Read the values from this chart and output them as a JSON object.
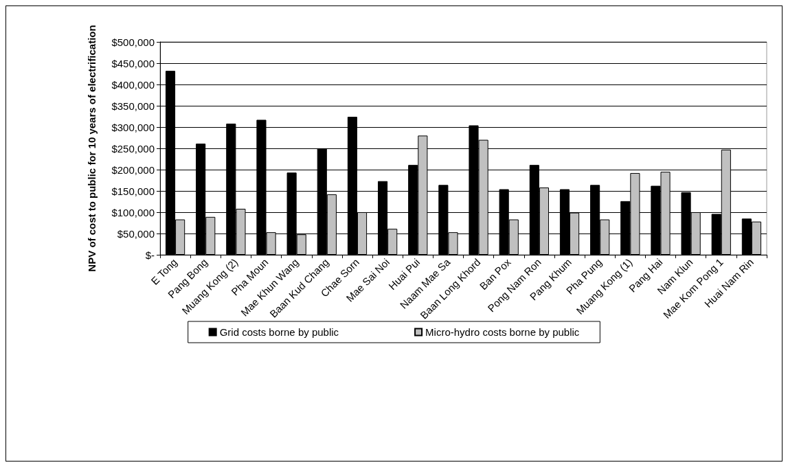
{
  "chart_data": {
    "type": "bar",
    "ylabel": "NPV of cost to public for 10 years of electrification",
    "categories": [
      "E Tong",
      "Pang Bong",
      "Muang Kong (2)",
      "Pha Moun",
      "Mae Khun Wang",
      "Baan Kud Chang",
      "Chae Sorn",
      "Mae Sai Noi",
      "Huai Pui",
      "Naam Mae Sa",
      "Baan Long Khord",
      "Ban Pox",
      "Pong Nam Ron",
      "Pang Khum",
      "Pha Pung",
      "Muang Kong (1)",
      "Pang Hai",
      "Nam Klun",
      "Mae Kom Pong 1",
      "Huai Nam Rin"
    ],
    "series": [
      {
        "name": "Grid costs borne by public",
        "color": "#000000",
        "values": [
          432000,
          261000,
          308000,
          317000,
          193000,
          250000,
          324000,
          173000,
          211000,
          164000,
          304000,
          154000,
          211000,
          154000,
          164000,
          126000,
          162000,
          147000,
          96000,
          85000
        ]
      },
      {
        "name": "Micro-hydro costs borne by public",
        "color": "#c0c0c0",
        "values": [
          83000,
          89000,
          108000,
          53000,
          48000,
          142000,
          100000,
          61000,
          280000,
          53000,
          270000,
          83000,
          158000,
          99000,
          83000,
          192000,
          195000,
          100000,
          247000,
          78000
        ]
      }
    ],
    "ylim": [
      0,
      500000
    ],
    "yticks": [
      {
        "value": 0,
        "label": "$-"
      },
      {
        "value": 50000,
        "label": "$50,000"
      },
      {
        "value": 100000,
        "label": "$100,000"
      },
      {
        "value": 150000,
        "label": "$150,000"
      },
      {
        "value": 200000,
        "label": "$200,000"
      },
      {
        "value": 250000,
        "label": "$250,000"
      },
      {
        "value": 300000,
        "label": "$300,000"
      },
      {
        "value": 350000,
        "label": "$350,000"
      },
      {
        "value": 400000,
        "label": "$400,000"
      },
      {
        "value": 450000,
        "label": "$450,000"
      },
      {
        "value": 500000,
        "label": "$500,000"
      }
    ],
    "grid": "y",
    "legend": "bottom"
  }
}
